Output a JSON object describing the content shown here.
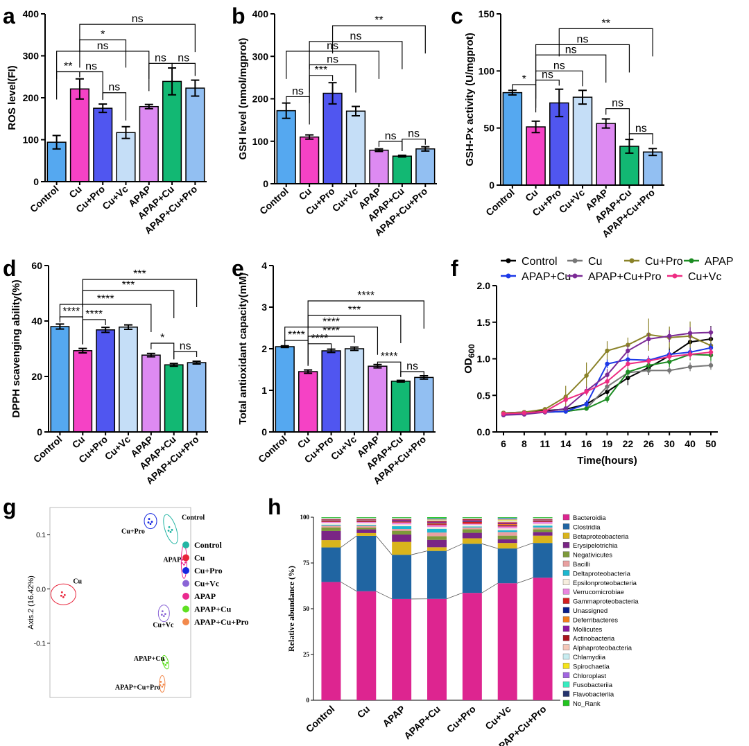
{
  "chart_data": [
    {
      "panel": "a",
      "type": "bar",
      "categories": [
        "Control",
        "Cu",
        "Cu+Pro",
        "Cu+Vc",
        "APAP",
        "APAP+Cu",
        "APAP+Cu+Pro"
      ],
      "values": [
        94,
        221,
        175,
        117,
        179,
        239,
        223
      ],
      "errors": [
        16,
        24,
        10,
        14,
        5,
        32,
        19
      ],
      "ylabel": "ROS level(FI)",
      "ylim": [
        0,
        400
      ],
      "yticks": [
        0,
        100,
        200,
        300,
        400
      ],
      "significance": [
        {
          "i": 0,
          "j": 1,
          "label": "**",
          "y": 262
        },
        {
          "i": 1,
          "j": 2,
          "label": "ns",
          "y": 262
        },
        {
          "i": 2,
          "j": 3,
          "label": "ns",
          "y": 212
        },
        {
          "i": 0,
          "j": 4,
          "label": "ns",
          "y": 311
        },
        {
          "i": 1,
          "j": 3,
          "label": "*",
          "y": 338
        },
        {
          "i": 1,
          "j": 6,
          "label": "ns",
          "y": 375
        },
        {
          "i": 4,
          "j": 5,
          "label": "ns",
          "y": 282
        },
        {
          "i": 5,
          "j": 6,
          "label": "ns",
          "y": 282
        }
      ]
    },
    {
      "panel": "b",
      "type": "bar",
      "categories": [
        "Control",
        "Cu",
        "Cu+Pro",
        "Cu+Vc",
        "APAP",
        "APAP+Cu",
        "APAP+Cu+Pro"
      ],
      "values": [
        172,
        110,
        213,
        171,
        79,
        65,
        82
      ],
      "errors": [
        18,
        5,
        25,
        11,
        3,
        2,
        5
      ],
      "ylabel": "GSH level (nmol/mgprot)",
      "ylim": [
        0,
        400
      ],
      "yticks": [
        0,
        100,
        200,
        300,
        400
      ],
      "significance": [
        {
          "i": 0,
          "j": 1,
          "label": "ns",
          "y": 205
        },
        {
          "i": 1,
          "j": 2,
          "label": "***",
          "y": 255
        },
        {
          "i": 1,
          "j": 3,
          "label": "ns",
          "y": 280
        },
        {
          "i": 0,
          "j": 4,
          "label": "ns",
          "y": 312
        },
        {
          "i": 1,
          "j": 5,
          "label": "ns",
          "y": 335
        },
        {
          "i": 2,
          "j": 6,
          "label": "**",
          "y": 372
        },
        {
          "i": 4,
          "j": 5,
          "label": "ns",
          "y": 100
        },
        {
          "i": 5,
          "j": 6,
          "label": "ns",
          "y": 105
        }
      ]
    },
    {
      "panel": "c",
      "type": "bar",
      "categories": [
        "Control",
        "Cu",
        "Cu+Pro",
        "Cu+Vc",
        "APAP",
        "APAP+Cu",
        "APAP+Cu+Pro"
      ],
      "values": [
        81,
        51,
        72,
        77,
        54,
        34,
        29
      ],
      "errors": [
        2,
        5,
        12,
        6,
        4,
        6,
        3
      ],
      "ylabel": "GSH-Px activity (U/mgprot)",
      "ylim": [
        0,
        150
      ],
      "yticks": [
        0,
        50,
        100,
        150
      ],
      "significance": [
        {
          "i": 0,
          "j": 1,
          "label": "*",
          "y": 88
        },
        {
          "i": 1,
          "j": 2,
          "label": "ns",
          "y": 92
        },
        {
          "i": 1,
          "j": 3,
          "label": "ns",
          "y": 100
        },
        {
          "i": 1,
          "j": 4,
          "label": "ns",
          "y": 114
        },
        {
          "i": 1,
          "j": 5,
          "label": "ns",
          "y": 123
        },
        {
          "i": 2,
          "j": 6,
          "label": "**",
          "y": 137
        },
        {
          "i": 4,
          "j": 5,
          "label": "ns",
          "y": 67
        },
        {
          "i": 5,
          "j": 6,
          "label": "ns",
          "y": 45
        }
      ]
    },
    {
      "panel": "d",
      "type": "bar",
      "categories": [
        "Control",
        "Cu",
        "Cu+Pro",
        "Cu+Vc",
        "APAP",
        "APAP+Cu",
        "APAP+Cu+Pro"
      ],
      "values": [
        38,
        29.3,
        36.8,
        37.8,
        27.7,
        24.2,
        25
      ],
      "errors": [
        0.9,
        0.8,
        0.9,
        0.8,
        0.6,
        0.5,
        0.5
      ],
      "ylabel": "DPPH  scavenging ability(%)",
      "ylim": [
        0,
        60
      ],
      "yticks": [
        0,
        20,
        40,
        60
      ],
      "significance": [
        {
          "i": 0,
          "j": 1,
          "label": "****",
          "y": 41.5
        },
        {
          "i": 1,
          "j": 2,
          "label": "****",
          "y": 40.5
        },
        {
          "i": 0,
          "j": 4,
          "label": "****",
          "y": 46
        },
        {
          "i": 1,
          "j": 5,
          "label": "***",
          "y": 51
        },
        {
          "i": 1,
          "j": 6,
          "label": "***",
          "y": 55
        },
        {
          "i": 4,
          "j": 5,
          "label": "*",
          "y": 32
        },
        {
          "i": 5,
          "j": 6,
          "label": "ns",
          "y": 29
        }
      ]
    },
    {
      "panel": "e",
      "type": "bar",
      "categories": [
        "Control",
        "Cu",
        "Cu+Pro",
        "Cu+Vc",
        "APAP",
        "APAP+Cu",
        "APAP+Cu+Pro"
      ],
      "values": [
        2.05,
        1.45,
        1.95,
        2.0,
        1.58,
        1.22,
        1.31
      ],
      "errors": [
        0.02,
        0.04,
        0.04,
        0.04,
        0.04,
        0.02,
        0.04
      ],
      "ylabel": "Total antioxidant capacity(mM)",
      "ylim": [
        0,
        4
      ],
      "yticks": [
        0,
        1,
        2,
        3,
        4
      ],
      "significance": [
        {
          "i": 0,
          "j": 1,
          "label": "****",
          "y": 2.2
        },
        {
          "i": 1,
          "j": 2,
          "label": "****",
          "y": 2.12
        },
        {
          "i": 0,
          "j": 4,
          "label": "****",
          "y": 2.52
        },
        {
          "i": 1,
          "j": 3,
          "label": "****",
          "y": 2.3
        },
        {
          "i": 1,
          "j": 5,
          "label": "***",
          "y": 2.8
        },
        {
          "i": 1,
          "j": 6,
          "label": "****",
          "y": 3.15
        },
        {
          "i": 4,
          "j": 5,
          "label": "****",
          "y": 1.68
        },
        {
          "i": 5,
          "j": 6,
          "label": "ns",
          "y": 1.45
        }
      ]
    },
    {
      "panel": "f",
      "type": "line",
      "x": [
        6,
        8,
        11,
        14,
        16,
        19,
        22,
        26,
        30,
        40,
        50
      ],
      "xlabel": "Time(hours)",
      "ylabel": "OD600",
      "ylim": [
        0,
        2
      ],
      "yticks": [
        0.0,
        0.5,
        1.0,
        1.5,
        2.0
      ],
      "series": [
        {
          "name": "Control",
          "color": "#000000",
          "values": [
            0.26,
            0.27,
            0.29,
            0.31,
            0.38,
            0.55,
            0.74,
            0.88,
            1.04,
            1.23,
            1.27
          ],
          "errors": [
            0.02,
            0.02,
            0.02,
            0.03,
            0.05,
            0.08,
            0.1,
            0.1,
            0.12,
            0.15,
            0.18
          ]
        },
        {
          "name": "Cu",
          "color": "#777777",
          "values": [
            0.25,
            0.26,
            0.27,
            0.28,
            0.32,
            0.62,
            0.81,
            0.84,
            0.84,
            0.89,
            0.91
          ],
          "errors": [
            0.02,
            0.02,
            0.02,
            0.02,
            0.03,
            0.06,
            0.06,
            0.05,
            0.05,
            0.06,
            0.06
          ]
        },
        {
          "name": "Cu+Pro",
          "color": "#8a8228",
          "values": [
            0.26,
            0.27,
            0.31,
            0.48,
            0.77,
            1.11,
            1.19,
            1.33,
            1.29,
            1.31,
            1.18
          ],
          "errors": [
            0.02,
            0.02,
            0.03,
            0.15,
            0.18,
            0.13,
            0.1,
            0.22,
            0.15,
            0.2,
            0.2
          ]
        },
        {
          "name": "APAP",
          "color": "#1c8c22",
          "values": [
            0.25,
            0.26,
            0.27,
            0.28,
            0.32,
            0.45,
            0.82,
            0.91,
            0.96,
            1.06,
            1.05
          ],
          "errors": [
            0.02,
            0.02,
            0.02,
            0.02,
            0.03,
            0.05,
            0.08,
            0.07,
            0.07,
            0.08,
            0.08
          ]
        },
        {
          "name": "APAP+Cu",
          "color": "#1c39e8",
          "values": [
            0.24,
            0.25,
            0.27,
            0.28,
            0.38,
            0.93,
            0.99,
            0.98,
            1.06,
            1.09,
            1.15
          ],
          "errors": [
            0.02,
            0.02,
            0.02,
            0.02,
            0.04,
            0.06,
            0.06,
            0.06,
            0.06,
            0.06,
            0.06
          ]
        },
        {
          "name": "APAP+Cu+Pro",
          "color": "#7b2a96",
          "values": [
            0.23,
            0.24,
            0.27,
            0.32,
            0.56,
            0.78,
            1.11,
            1.27,
            1.31,
            1.35,
            1.36
          ],
          "errors": [
            0.02,
            0.02,
            0.02,
            0.03,
            0.06,
            0.08,
            0.08,
            0.08,
            0.08,
            0.08,
            0.08
          ]
        },
        {
          "name": "Cu+Vc",
          "color": "#ee2c83",
          "values": [
            0.25,
            0.26,
            0.28,
            0.44,
            0.55,
            0.69,
            0.93,
            0.97,
            1.03,
            1.06,
            1.09
          ],
          "errors": [
            0.02,
            0.02,
            0.02,
            0.05,
            0.05,
            0.06,
            0.06,
            0.06,
            0.06,
            0.06,
            0.06
          ]
        }
      ]
    },
    {
      "panel": "g",
      "type": "scatter",
      "ylabel": "Axis.2 (16.42%)",
      "yticks": [
        "0.1",
        "0.0",
        "-0.1"
      ],
      "ylim": [
        -0.2,
        0.15
      ],
      "groups": [
        {
          "name": "Control",
          "color": "#25b5a4",
          "label": "Control",
          "center": [
            0.08,
            0.11
          ]
        },
        {
          "name": "Cu",
          "color": "#e8233a",
          "label": "Cu",
          "center": [
            -0.24,
            -0.01
          ]
        },
        {
          "name": "Cu+Pro",
          "color": "#1527e0",
          "label": "Cu+Pro",
          "center": [
            0.02,
            0.125
          ]
        },
        {
          "name": "Cu+Vc",
          "color": "#8a64d6",
          "label": "Cu+Vc",
          "center": [
            0.06,
            -0.045
          ]
        },
        {
          "name": "APAP",
          "color": "#ea2a8f",
          "label": "APAP",
          "center": [
            0.12,
            0.05
          ]
        },
        {
          "name": "APAP+Cu",
          "color": "#5fe022",
          "label": "APAP+Cu",
          "center": [
            0.065,
            -0.135
          ]
        },
        {
          "name": "APAP+Cu+Pro",
          "color": "#f2894c",
          "label": "APAP+Cu+Pro",
          "center": [
            0.055,
            -0.175
          ]
        }
      ]
    },
    {
      "panel": "h",
      "type": "bar",
      "stacked": true,
      "categories": [
        "Control",
        "Cu",
        "APAP",
        "APAP+Cu",
        "Cu+Pro",
        "Cu+Vc",
        "APAP+Cu+Pro"
      ],
      "ylabel": "Relative abundance (%)",
      "ylim": [
        0,
        100
      ],
      "yticks": [
        0,
        25,
        50,
        75,
        100
      ],
      "series": [
        {
          "name": "Bacteroidia",
          "color": "#dd2590",
          "values": [
            65,
            59,
            55,
            55,
            59,
            64,
            67
          ]
        },
        {
          "name": "Clostridia",
          "color": "#2065a2",
          "values": [
            19,
            30,
            24,
            26,
            27,
            19,
            19
          ]
        },
        {
          "name": "Betaproteobacteria",
          "color": "#d9b41c",
          "values": [
            4,
            1.5,
            7,
            2,
            3,
            3,
            4
          ]
        },
        {
          "name": "Erysipelotrichia",
          "color": "#7a2585",
          "values": [
            5,
            2,
            4,
            4,
            3,
            2,
            2
          ]
        },
        {
          "name": "Negativicutes",
          "color": "#7d9a3a",
          "values": [
            2,
            1,
            2,
            2,
            2,
            2,
            1.5
          ]
        },
        {
          "name": "Bacilli",
          "color": "#e9a0a0",
          "values": [
            1,
            1,
            1,
            2,
            1,
            2,
            1
          ]
        },
        {
          "name": "Deltaproteobacteria",
          "color": "#1cb8d0",
          "values": [
            0.5,
            0.5,
            1.5,
            2,
            0.5,
            1,
            1
          ]
        },
        {
          "name": "Epsilonproteobacteria",
          "color": "#f7eede",
          "values": [
            1,
            1,
            1,
            1,
            1,
            1,
            1
          ]
        },
        {
          "name": "Verrucomicrobiae",
          "color": "#ea86e0",
          "values": [
            0.5,
            0.5,
            1,
            1,
            0.5,
            1,
            1
          ]
        },
        {
          "name": "Gammaproteobacteria",
          "color": "#d41f1f",
          "values": [
            0.5,
            0.5,
            0.5,
            0.5,
            1,
            0.5,
            0.5
          ]
        },
        {
          "name": "Unassigned",
          "color": "#0a1f8c",
          "values": [
            0.3,
            0.3,
            0.3,
            0.3,
            0.3,
            0.3,
            0.3
          ]
        },
        {
          "name": "Deferribacteres",
          "color": "#f07f1c",
          "values": [
            0.2,
            0.2,
            0.2,
            0.5,
            0.2,
            0.5,
            0.2
          ]
        },
        {
          "name": "Mollicutes",
          "color": "#8a1aa0",
          "values": [
            0.2,
            0.2,
            0.5,
            0.5,
            0.5,
            0.5,
            0.2
          ]
        },
        {
          "name": "Actinobacteria",
          "color": "#a8141c",
          "values": [
            0.3,
            0.3,
            0.3,
            0.5,
            0.5,
            0.5,
            0.3
          ]
        },
        {
          "name": "Alphaproteobacteria",
          "color": "#f5c7b8",
          "values": [
            0.2,
            0.2,
            0.2,
            0.2,
            0.2,
            0.5,
            0.2
          ]
        },
        {
          "name": "Chlamydiia",
          "color": "#c8ecf0",
          "values": [
            0.2,
            0.2,
            0.2,
            0.2,
            0.2,
            0.5,
            0.2
          ]
        },
        {
          "name": "Spirochaetia",
          "color": "#f5e41a",
          "values": [
            0.1,
            0.1,
            0.1,
            0.3,
            0.1,
            0.5,
            0.1
          ]
        },
        {
          "name": "Chloroplast",
          "color": "#a266e0",
          "values": [
            0.1,
            0.1,
            0.1,
            0.3,
            0.1,
            0.5,
            0.1
          ]
        },
        {
          "name": "Fusobacteriia",
          "color": "#38ecc0",
          "values": [
            0.1,
            0.1,
            0.1,
            0.3,
            0.1,
            0.3,
            0.1
          ]
        },
        {
          "name": "Flavobacteriia",
          "color": "#25336d",
          "values": [
            0.1,
            0.1,
            0.1,
            0.2,
            0.1,
            0.2,
            0.1
          ]
        },
        {
          "name": "No_Rank",
          "color": "#22c41f",
          "values": [
            0.3,
            0.3,
            0.3,
            0.5,
            0.3,
            0.3,
            0.3
          ]
        }
      ]
    }
  ],
  "colors": {
    "Control": "#55a8f0",
    "Cu": "#f542c5",
    "Cu+Pro": "#5056f0",
    "Cu+Vc": "#c5def7",
    "APAP": "#dd8af2",
    "APAP+Cu": "#12b873",
    "APAP+Cu+Pro": "#92bff2"
  },
  "panel_letters": [
    "a",
    "b",
    "c",
    "d",
    "e",
    "f",
    "g",
    "h"
  ]
}
